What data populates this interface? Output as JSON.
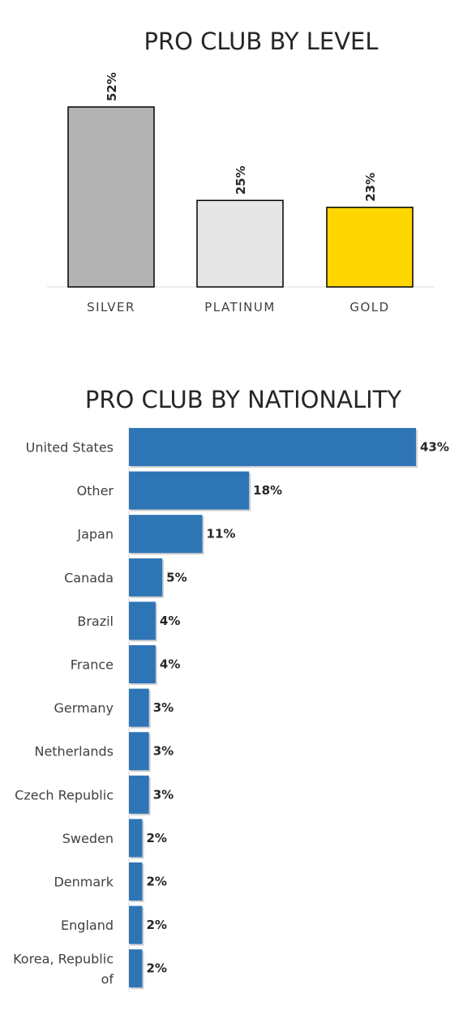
{
  "chart_data": [
    {
      "type": "bar",
      "title": "PRO CLUB BY LEVEL",
      "categories": [
        "SILVER",
        "PLATINUM",
        "GOLD"
      ],
      "values": [
        52,
        25,
        23
      ],
      "value_labels": [
        "52%",
        "25%",
        "23%"
      ],
      "colors": [
        "#b3b3b3",
        "#e6e6e6",
        "#ffd700"
      ],
      "ylim": [
        0,
        52
      ],
      "grid": false
    },
    {
      "type": "bar",
      "orientation": "horizontal",
      "title": "PRO CLUB BY NATIONALITY",
      "categories": [
        "United States",
        "Other",
        "Japan",
        "Canada",
        "Brazil",
        "France",
        "Germany",
        "Netherlands",
        "Czech Republic",
        "Sweden",
        "Denmark",
        "England",
        "Korea, Republic of"
      ],
      "values": [
        43,
        18,
        11,
        5,
        4,
        4,
        3,
        3,
        3,
        2,
        2,
        2,
        2
      ],
      "value_labels": [
        "43%",
        "18%",
        "11%",
        "5%",
        "4%",
        "4%",
        "3%",
        "3%",
        "3%",
        "2%",
        "2%",
        "2%",
        "2%"
      ],
      "color": "#2e75b6",
      "xlim": [
        0,
        43
      ],
      "grid": false
    }
  ]
}
